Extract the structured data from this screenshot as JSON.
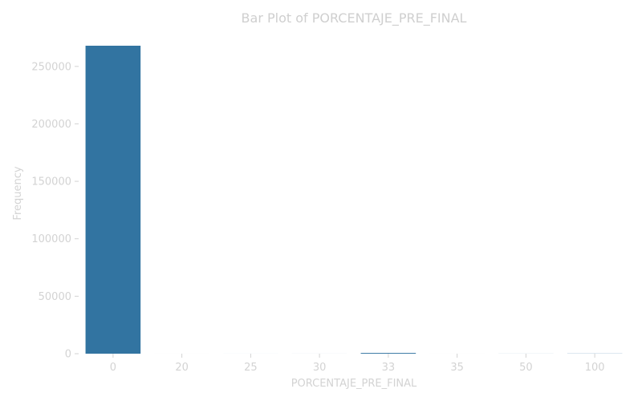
{
  "chart_data": {
    "type": "bar",
    "title": "Bar Plot of PORCENTAJE_PRE_FINAL",
    "xlabel": "PORCENTAJE_PRE_FINAL",
    "ylabel": "Frequency",
    "categories": [
      "0",
      "20",
      "25",
      "30",
      "33",
      "35",
      "50",
      "100"
    ],
    "values": [
      268000,
      10,
      15,
      20,
      650,
      10,
      40,
      120
    ],
    "ylim": [
      0,
      268000
    ],
    "yticks": [
      0,
      50000,
      100000,
      150000,
      200000,
      250000
    ],
    "yticklabels": [
      "0",
      "50000",
      "100000",
      "150000",
      "200000",
      "250000"
    ],
    "grid": false,
    "legend": "none",
    "colors": {
      "bar": "#3274a1",
      "text": "#d3d3d3"
    }
  }
}
